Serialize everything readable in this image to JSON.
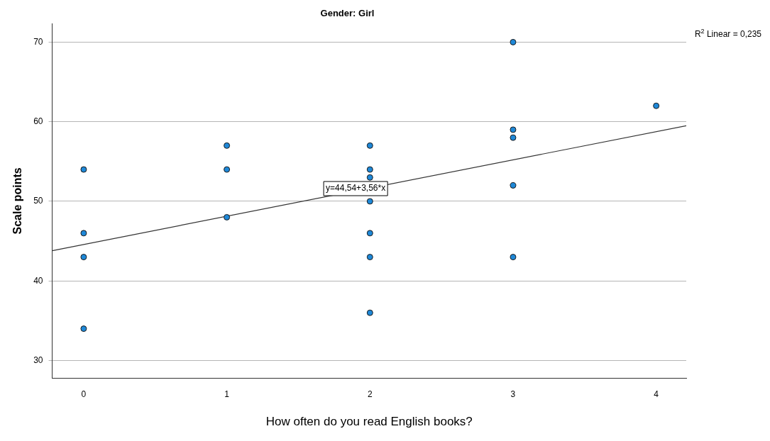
{
  "chart_data": {
    "type": "scatter",
    "title": "Gender: Girl",
    "xlabel": "How often do you read English books?",
    "ylabel": "Scale points",
    "series": [
      {
        "type": "scatter",
        "marker": "circle",
        "color": "#1e88d8",
        "x": [
          0,
          0,
          0,
          0,
          1,
          1,
          1,
          2,
          2,
          2,
          2,
          2,
          2,
          2,
          3,
          3,
          3,
          3,
          3,
          4
        ],
        "values": [
          54,
          46,
          43,
          34,
          57,
          54,
          48,
          57,
          54,
          53,
          50,
          46,
          43,
          36,
          70,
          59,
          58,
          52,
          43,
          62
        ]
      },
      {
        "type": "line",
        "color": "#333333",
        "x": [
          -0.22,
          4.21
        ],
        "values": [
          43.8,
          59.5
        ]
      }
    ],
    "annotations": [
      "R$^{2}$ Linear = 0,235",
      {
        "text": "y=44,54+3,56*x",
        "x": 1.9,
        "y": 51.6
      }
    ],
    "xlim": [
      -0.22,
      4.21
    ],
    "ylim": [
      27.8,
      72.3
    ],
    "xticks": [
      0,
      1,
      2,
      3,
      4
    ],
    "yticks": [
      30,
      40,
      50,
      60,
      70
    ],
    "grid": "y",
    "legend": false
  }
}
